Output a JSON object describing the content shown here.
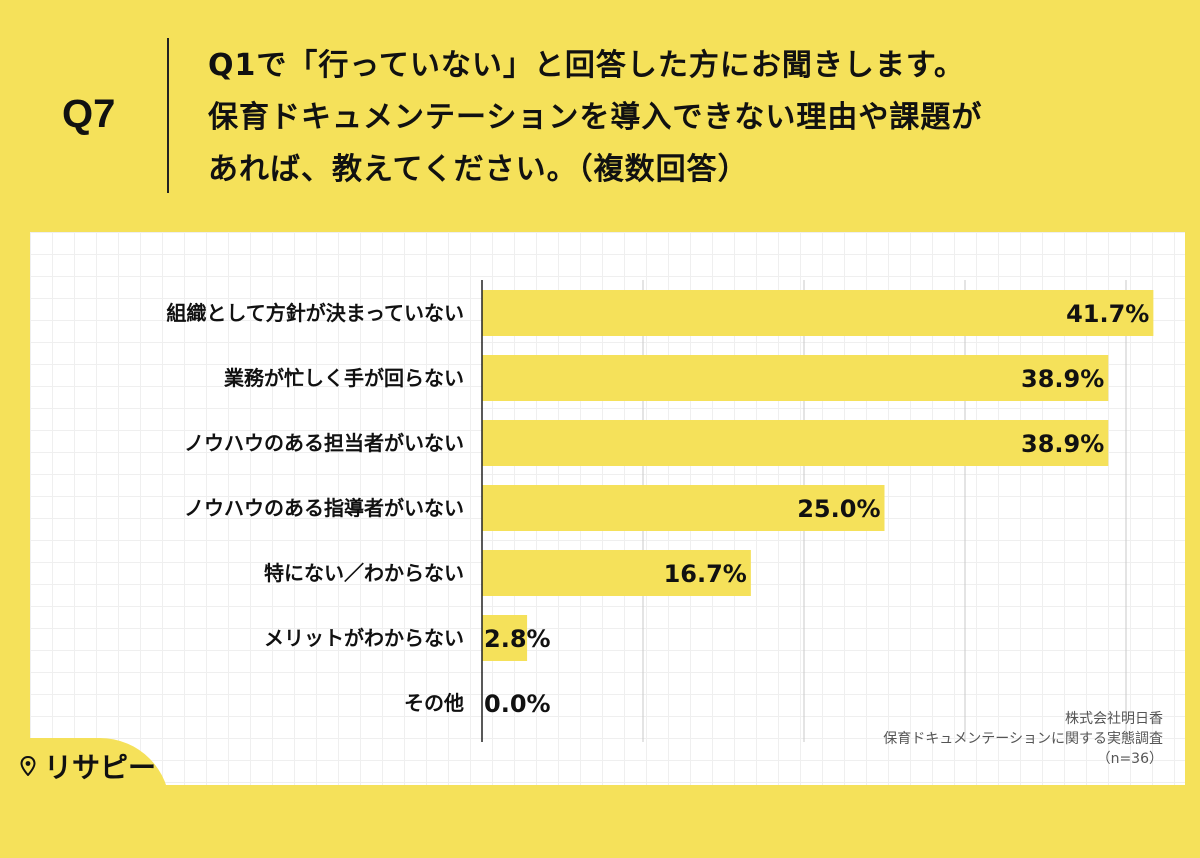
{
  "question": {
    "number": "Q7",
    "lines": [
      "Q1で「行っていない」と回答した方にお聞きします。",
      "保育ドキュメンテーションを導入できない理由や課題が",
      "あれば、教えてください。（複数回答）"
    ]
  },
  "chart_data": {
    "type": "bar",
    "orientation": "horizontal",
    "unit": "%",
    "categories": [
      "組織として方針が決まっていない",
      "業務が忙しく手が回らない",
      "ノウハウのある担当者がいない",
      "ノウハウのある指導者がいない",
      "特にない／わからない",
      "メリットがわからない",
      "その他"
    ],
    "values": [
      41.7,
      38.9,
      38.9,
      25.0,
      16.7,
      2.8,
      0.0
    ],
    "value_labels": [
      "41.7%",
      "38.9%",
      "38.9%",
      "25.0%",
      "16.7%",
      "2.8%",
      "0.0%"
    ],
    "xlim": [
      0,
      50
    ],
    "gridline_step": 10,
    "grid": true,
    "bar_color": "#F5E15A"
  },
  "source": {
    "company": "株式会社明日香",
    "survey": "保育ドキュメンテーションに関する実態調査",
    "sample": "（n=36）"
  },
  "logo": {
    "text": "リサピー",
    "icon": "location-pin-icon"
  },
  "colors": {
    "background": "#F5E15A",
    "bar": "#F5E15A",
    "text": "#111111"
  }
}
